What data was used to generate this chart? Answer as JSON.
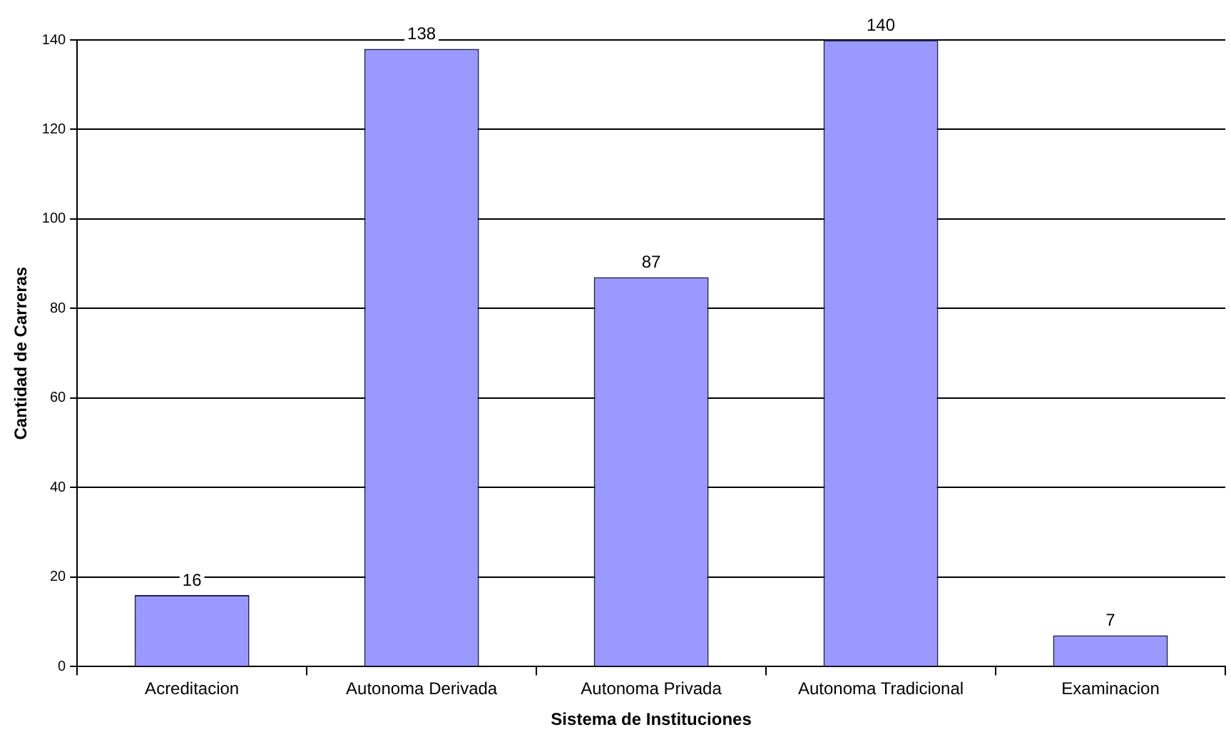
{
  "chart_data": {
    "type": "bar",
    "xlabel": "Sistema de Instituciones",
    "ylabel": "Cantidad de Carreras",
    "categories": [
      "Acreditacion",
      "Autonoma Derivada",
      "Autonoma Privada",
      "Autonoma Tradicional",
      "Examinacion"
    ],
    "values": [
      16,
      138,
      87,
      140,
      7
    ],
    "color": "#9999ff",
    "ylim": [
      0,
      140
    ],
    "yticks": [
      0,
      20,
      40,
      60,
      80,
      100,
      120,
      140
    ],
    "grid": "y",
    "legend": false,
    "data_labels": true
  }
}
